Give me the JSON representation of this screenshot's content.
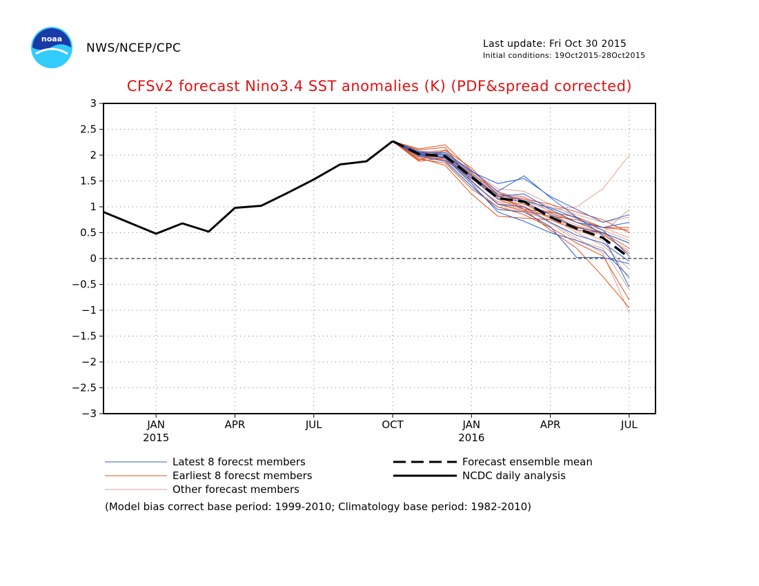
{
  "header": {
    "org": "NWS/NCEP/CPC",
    "last_update": "Last update: Fri Oct 30 2015",
    "initial_conditions": "Initial conditions: 19Oct2015-28Oct2015"
  },
  "colors": {
    "title": "#e01010",
    "latest": "#2a5fd0",
    "earliest": "#e0501a",
    "other": "#e0a090",
    "analysis": "#000000"
  },
  "legend": {
    "latest": "Latest 8 forecst members",
    "earliest": "Earliest 8 forecst members",
    "other": "Other forecast members",
    "mean": "Forecast ensemble mean",
    "analysis": "NCDC daily analysis"
  },
  "footnote": "(Model bias correct base period: 1999-2010; Climatology base period: 1982-2010)",
  "chart_data": {
    "type": "line",
    "title": "CFSv2 forecast Nino3.4 SST anomalies (K) (PDF&spread corrected)",
    "ylim": [
      -3,
      3
    ],
    "xlim": [
      0,
      21
    ],
    "yticks": [
      "3",
      "2.5",
      "2",
      "1.5",
      "1",
      "0.5",
      "0",
      "-0.5",
      "-1",
      "-1.5",
      "-2",
      "-2.5",
      "-3"
    ],
    "ytick_values": [
      3,
      2.5,
      2,
      1.5,
      1,
      0.5,
      0,
      -0.5,
      -1,
      -1.5,
      -2,
      -2.5,
      -3
    ],
    "xticks": [
      {
        "x": 2,
        "label": "JAN",
        "sub": "2015"
      },
      {
        "x": 5,
        "label": "APR",
        "sub": ""
      },
      {
        "x": 8,
        "label": "JUL",
        "sub": ""
      },
      {
        "x": 11,
        "label": "OCT",
        "sub": ""
      },
      {
        "x": 14,
        "label": "JAN",
        "sub": "2016"
      },
      {
        "x": 17,
        "label": "APR",
        "sub": ""
      },
      {
        "x": 20,
        "label": "JUL",
        "sub": ""
      }
    ],
    "grid": true,
    "series": [
      {
        "name": "NCDC daily analysis",
        "style": "solid",
        "x": [
          0,
          2,
          3,
          4,
          5,
          6,
          7,
          8,
          9,
          10,
          11
        ],
        "y": [
          0.9,
          0.48,
          0.68,
          0.52,
          0.98,
          1.02,
          1.27,
          1.53,
          1.82,
          1.88,
          2.27
        ]
      },
      {
        "name": "Forecast ensemble mean",
        "style": "dashed",
        "x": [
          11,
          12,
          13,
          14,
          15,
          16,
          17,
          18,
          19,
          20
        ],
        "y": [
          2.27,
          2.02,
          1.98,
          1.58,
          1.17,
          1.1,
          0.8,
          0.58,
          0.4,
          0.02
        ]
      },
      {
        "name": "Latest 8 forecst members",
        "style": "thin",
        "members": [
          {
            "x": [
              11,
              12,
              13,
              14,
              15,
              16,
              17,
              18,
              19,
              20
            ],
            "y": [
              2.27,
              2.07,
              2.02,
              1.68,
              1.45,
              1.55,
              1.2,
              0.95,
              0.7,
              0.85
            ]
          },
          {
            "x": [
              11,
              12,
              13,
              14,
              15,
              16,
              17,
              18,
              19,
              20
            ],
            "y": [
              2.27,
              2.0,
              1.95,
              1.55,
              1.25,
              1.12,
              0.98,
              0.78,
              0.55,
              0.05
            ]
          },
          {
            "x": [
              11,
              12,
              13,
              14,
              15,
              16,
              17,
              18,
              19,
              20
            ],
            "y": [
              2.27,
              1.98,
              1.88,
              1.4,
              0.95,
              0.9,
              0.62,
              0.02,
              0.02,
              -0.1
            ]
          },
          {
            "x": [
              11,
              12,
              13,
              14,
              15,
              16,
              17,
              18,
              19,
              20
            ],
            "y": [
              2.27,
              2.05,
              2.05,
              1.7,
              1.3,
              1.6,
              1.18,
              0.8,
              0.45,
              -0.55
            ]
          },
          {
            "x": [
              11,
              12,
              13,
              14,
              15,
              16,
              17,
              18,
              19,
              20
            ],
            "y": [
              2.27,
              2.02,
              2.0,
              1.62,
              1.2,
              1.25,
              0.95,
              0.7,
              0.6,
              0.7
            ]
          },
          {
            "x": [
              11,
              12,
              13,
              14,
              15,
              16,
              17,
              18,
              19,
              20
            ],
            "y": [
              2.27,
              2.01,
              1.96,
              1.5,
              1.05,
              1.0,
              0.7,
              0.45,
              0.3,
              -0.05
            ]
          },
          {
            "x": [
              11,
              12,
              13,
              14,
              15,
              16,
              17,
              18,
              19,
              20
            ],
            "y": [
              2.27,
              2.04,
              1.94,
              1.45,
              0.9,
              0.72,
              0.5,
              0.35,
              0.15,
              -0.35
            ]
          },
          {
            "x": [
              11,
              12,
              13,
              14,
              15,
              16,
              17,
              18,
              19,
              20
            ],
            "y": [
              2.27,
              2.03,
              2.0,
              1.58,
              1.15,
              1.1,
              0.85,
              0.6,
              0.5,
              0.3
            ]
          }
        ]
      },
      {
        "name": "Earliest 8 forecst members",
        "style": "thin",
        "members": [
          {
            "x": [
              11,
              12,
              13,
              14,
              15,
              16,
              17,
              18,
              19,
              20
            ],
            "y": [
              2.27,
              1.9,
              2.1,
              1.75,
              1.22,
              0.95,
              0.55,
              0.2,
              -0.35,
              -0.95
            ]
          },
          {
            "x": [
              11,
              12,
              13,
              14,
              15,
              16,
              17,
              18,
              19,
              20
            ],
            "y": [
              2.27,
              2.1,
              2.15,
              1.5,
              1.05,
              0.92,
              0.82,
              0.75,
              0.6,
              0.55
            ]
          },
          {
            "x": [
              11,
              12,
              13,
              14,
              15,
              16,
              17,
              18,
              19,
              20
            ],
            "y": [
              2.27,
              1.95,
              1.8,
              1.25,
              0.82,
              0.78,
              0.75,
              0.55,
              0.5,
              0.3
            ]
          },
          {
            "x": [
              11,
              12,
              13,
              14,
              15,
              16,
              17,
              18,
              19,
              20
            ],
            "y": [
              2.27,
              2.0,
              1.9,
              1.55,
              1.15,
              0.95,
              0.9,
              0.8,
              0.6,
              0.6
            ]
          },
          {
            "x": [
              11,
              12,
              13,
              14,
              15,
              16,
              17,
              18,
              19,
              20
            ],
            "y": [
              2.27,
              1.92,
              1.85,
              1.35,
              1.0,
              0.85,
              0.6,
              0.3,
              0.05,
              -0.8
            ]
          },
          {
            "x": [
              11,
              12,
              13,
              14,
              15,
              16,
              17,
              18,
              19,
              20
            ],
            "y": [
              2.27,
              2.12,
              2.2,
              1.7,
              1.3,
              1.05,
              0.88,
              0.7,
              0.5,
              0.2
            ]
          },
          {
            "x": [
              11,
              12,
              13,
              14,
              15,
              16,
              17,
              18,
              19,
              20
            ],
            "y": [
              2.27,
              1.88,
              1.95,
              1.6,
              1.18,
              1.0,
              0.78,
              0.62,
              0.48,
              0.1
            ]
          },
          {
            "x": [
              11,
              12,
              13,
              14,
              15,
              16,
              17,
              18,
              19,
              20
            ],
            "y": [
              2.27,
              2.05,
              2.0,
              1.65,
              1.25,
              1.15,
              1.05,
              0.9,
              0.75,
              0.5
            ]
          }
        ]
      },
      {
        "name": "Other forecast members",
        "style": "thin",
        "members": [
          {
            "x": [
              11,
              12,
              13,
              14,
              15,
              16,
              17,
              18,
              19,
              20
            ],
            "y": [
              2.27,
              2.0,
              2.05,
              1.6,
              1.2,
              1.15,
              0.95,
              1.0,
              1.35,
              2.0
            ]
          },
          {
            "x": [
              11,
              12,
              13,
              14,
              15,
              16,
              17,
              18,
              19,
              20
            ],
            "y": [
              2.27,
              1.98,
              1.95,
              1.45,
              1.1,
              1.05,
              0.85,
              0.65,
              0.5,
              0.95
            ]
          },
          {
            "x": [
              11,
              12,
              13,
              14,
              15,
              16,
              17,
              18,
              19,
              20
            ],
            "y": [
              2.27,
              2.02,
              1.92,
              1.5,
              1.05,
              0.95,
              0.7,
              0.4,
              0.1,
              -1.05
            ]
          },
          {
            "x": [
              11,
              12,
              13,
              14,
              15,
              16,
              17,
              18,
              19,
              20
            ],
            "y": [
              2.27,
              2.05,
              2.1,
              1.65,
              1.25,
              1.2,
              0.9,
              0.55,
              0.35,
              -0.4
            ]
          },
          {
            "x": [
              11,
              12,
              13,
              14,
              15,
              16,
              17,
              18,
              19,
              20
            ],
            "y": [
              2.27,
              1.95,
              1.9,
              1.4,
              1.0,
              0.9,
              0.75,
              0.6,
              0.45,
              0.15
            ]
          },
          {
            "x": [
              11,
              12,
              13,
              14,
              15,
              16,
              17,
              18,
              19,
              20
            ],
            "y": [
              2.27,
              2.08,
              2.05,
              1.7,
              1.35,
              1.3,
              1.05,
              0.8,
              0.6,
              0.4
            ]
          },
          {
            "x": [
              11,
              12,
              13,
              14,
              15,
              16,
              17,
              18,
              19,
              20
            ],
            "y": [
              2.27,
              2.0,
              1.98,
              1.55,
              1.15,
              1.05,
              0.8,
              0.5,
              0.25,
              -0.2
            ]
          },
          {
            "x": [
              11,
              12,
              13,
              14,
              15,
              16,
              17,
              18,
              19,
              20
            ],
            "y": [
              2.27,
              2.03,
              2.0,
              1.62,
              1.22,
              1.12,
              0.92,
              0.7,
              0.55,
              0.35
            ]
          },
          {
            "x": [
              11,
              12,
              13,
              14,
              15,
              16,
              17,
              18,
              19,
              20
            ],
            "y": [
              2.27,
              1.97,
              1.93,
              1.48,
              1.08,
              0.98,
              0.68,
              0.35,
              0.2,
              -0.6
            ]
          },
          {
            "x": [
              11,
              12,
              13,
              14,
              15,
              16,
              17,
              18,
              19,
              20
            ],
            "y": [
              2.27,
              2.06,
              2.08,
              1.66,
              1.28,
              1.18,
              1.0,
              0.85,
              0.7,
              0.8
            ]
          }
        ]
      }
    ]
  }
}
